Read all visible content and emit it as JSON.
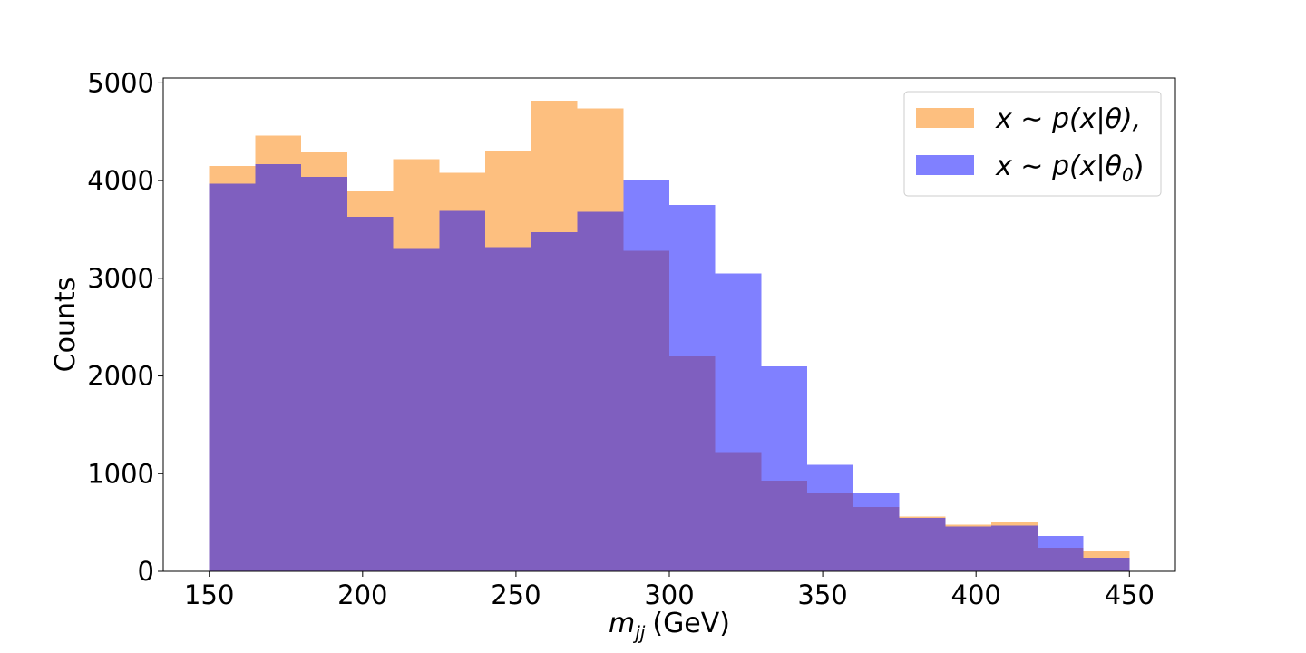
{
  "chart_data": {
    "type": "bar",
    "subtype": "overlapping-histogram",
    "bin_edges": [
      150,
      165,
      180,
      195,
      210,
      225,
      240,
      255,
      270,
      285,
      300,
      315,
      330,
      345,
      360,
      375,
      390,
      405,
      420,
      435,
      450
    ],
    "series": [
      {
        "name": "x ∼ p(x|θ),",
        "color": "#fdbf7f",
        "values": [
          4150,
          4460,
          4290,
          3890,
          4220,
          4080,
          4300,
          4820,
          4740,
          3280,
          2210,
          1220,
          930,
          800,
          660,
          560,
          480,
          500,
          240,
          210
        ]
      },
      {
        "name": "x ∼ p(x|θ0)",
        "color": "#8080ff",
        "values": [
          3970,
          4170,
          4040,
          3630,
          3310,
          3690,
          3320,
          3470,
          3680,
          4010,
          3750,
          3050,
          2100,
          1090,
          800,
          550,
          460,
          470,
          360,
          140
        ]
      }
    ],
    "overlap_color": "#7f5fbf",
    "xlabel": "m",
    "xlabel_sub": "jj",
    "xlabel_unit": "(GeV)",
    "ylabel": "Counts",
    "xlim": [
      135,
      465
    ],
    "ylim": [
      0,
      5050
    ],
    "xticks": [
      "150",
      "200",
      "250",
      "300",
      "350",
      "400",
      "450"
    ],
    "yticks": [
      "0",
      "1000",
      "2000",
      "3000",
      "4000",
      "5000"
    ],
    "legend_position": "top-right",
    "legend": {
      "entry1_main": "x ∼ p(x|θ),",
      "entry2_main": "x ∼ p(x|θ",
      "entry2_sub": "0",
      "entry2_close": ")"
    },
    "grid": false
  }
}
